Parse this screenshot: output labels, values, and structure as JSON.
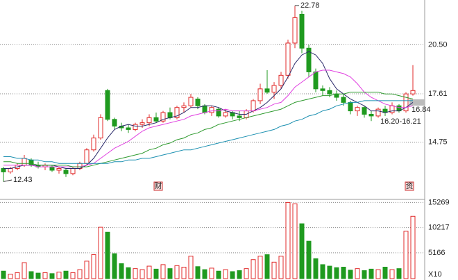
{
  "chart_data": {
    "type": "candlestick",
    "open": [
      13.2,
      13.0,
      13.2,
      13.4,
      13.7,
      13.4,
      13.3,
      13.3,
      13.1,
      13.1,
      12.9,
      13.2,
      13.5,
      14.3,
      15.0,
      17.8,
      16.1,
      15.7,
      15.6,
      15.5,
      15.8,
      15.9,
      16.2,
      16.0,
      16.5,
      16.2,
      16.8,
      16.9,
      17.3,
      16.9,
      16.5,
      16.7,
      16.3,
      16.5,
      16.3,
      16.2,
      16.6,
      17.2,
      17.9,
      17.7,
      18.1,
      18.7,
      20.6,
      22.3,
      20.3,
      18.9,
      17.9,
      17.8,
      17.6,
      17.4,
      17.1,
      16.6,
      16.8,
      16.4,
      16.3,
      16.7,
      16.5,
      16.9,
      16.6,
      17.6
    ],
    "high": [
      13.3,
      13.3,
      13.5,
      14.0,
      13.8,
      13.6,
      13.5,
      13.4,
      13.3,
      13.2,
      13.3,
      13.6,
      14.4,
      15.2,
      16.4,
      17.9,
      16.2,
      15.9,
      15.8,
      15.9,
      16.1,
      16.4,
      16.5,
      16.6,
      16.8,
      16.9,
      17.1,
      17.6,
      17.4,
      17.0,
      16.9,
      16.8,
      16.7,
      16.6,
      16.6,
      16.7,
      17.3,
      18.2,
      19.0,
      18.3,
      18.9,
      20.8,
      22.78,
      22.5,
      20.5,
      19.1,
      18.1,
      18.0,
      17.8,
      17.6,
      17.2,
      16.9,
      16.9,
      16.6,
      16.8,
      16.9,
      17.1,
      17.0,
      17.7,
      19.3
    ],
    "low": [
      12.43,
      12.9,
      13.1,
      13.3,
      13.3,
      13.2,
      13.1,
      13.0,
      12.9,
      12.7,
      12.8,
      13.1,
      13.4,
      14.2,
      14.9,
      16.0,
      15.5,
      15.4,
      15.3,
      15.4,
      15.6,
      15.7,
      15.9,
      15.9,
      16.1,
      16.1,
      16.5,
      16.8,
      16.7,
      16.4,
      16.3,
      16.2,
      16.2,
      16.1,
      16.0,
      16.1,
      16.5,
      17.0,
      17.6,
      17.3,
      17.9,
      18.5,
      20.3,
      20.0,
      18.6,
      17.7,
      17.5,
      17.4,
      17.2,
      16.9,
      16.4,
      16.3,
      16.2,
      16.0,
      16.2,
      16.3,
      16.4,
      16.5,
      16.5,
      17.5
    ],
    "close": [
      13.0,
      13.2,
      13.4,
      13.8,
      13.4,
      13.3,
      13.4,
      13.1,
      13.2,
      12.9,
      13.2,
      13.5,
      14.3,
      15.0,
      16.2,
      16.1,
      15.7,
      15.6,
      15.5,
      15.8,
      15.9,
      16.2,
      16.0,
      16.5,
      16.2,
      16.8,
      16.9,
      17.4,
      16.9,
      16.5,
      16.8,
      16.3,
      16.5,
      16.3,
      16.2,
      16.6,
      17.2,
      17.9,
      17.7,
      18.1,
      18.7,
      20.6,
      22.1,
      20.3,
      18.9,
      17.9,
      17.8,
      17.6,
      17.4,
      17.1,
      16.6,
      16.8,
      16.4,
      16.3,
      16.7,
      16.5,
      16.9,
      16.6,
      17.6,
      17.8
    ],
    "volume": [
      1500,
      900,
      1200,
      3200,
      1400,
      1100,
      1200,
      1000,
      1300,
      1500,
      1200,
      1800,
      3500,
      4800,
      10300,
      9300,
      5000,
      3000,
      2200,
      2000,
      1800,
      2500,
      1900,
      2800,
      2000,
      2600,
      2300,
      4500,
      2400,
      1800,
      2100,
      1500,
      1800,
      1400,
      1600,
      2000,
      3800,
      4500,
      4800,
      3300,
      4500,
      15269,
      15000,
      11000,
      7500,
      4000,
      2800,
      2500,
      2200,
      2300,
      1700,
      2000,
      1600,
      1900,
      1800,
      2300,
      1800,
      2000,
      9500,
      12500
    ],
    "ma": [
      {
        "color": "#2a2a6a",
        "values": [
          13.2,
          13.2,
          13.3,
          13.4,
          13.4,
          13.4,
          13.4,
          13.4,
          13.3,
          13.2,
          13.2,
          13.2,
          13.4,
          13.8,
          14.4,
          15.0,
          15.5,
          15.7,
          15.8,
          15.7,
          15.7,
          15.8,
          15.9,
          16.1,
          16.2,
          16.3,
          16.5,
          16.8,
          16.8,
          16.9,
          16.9,
          16.8,
          16.6,
          16.5,
          16.4,
          16.4,
          16.6,
          16.8,
          17.1,
          17.5,
          17.9,
          18.6,
          19.4,
          19.9,
          20.1,
          19.9,
          19.4,
          18.5,
          17.9,
          17.6,
          17.3,
          17.1,
          16.9,
          16.6,
          16.6,
          16.5,
          16.6,
          16.6,
          16.8,
          17.1
        ]
      },
      {
        "color": "#e040e0",
        "values": [
          13.4,
          13.4,
          13.4,
          13.4,
          13.4,
          13.3,
          13.3,
          13.3,
          13.3,
          13.3,
          13.3,
          13.3,
          13.4,
          13.5,
          13.8,
          14.1,
          14.4,
          14.6,
          14.8,
          15.1,
          15.4,
          15.6,
          15.7,
          15.8,
          15.9,
          16.0,
          16.1,
          16.3,
          16.4,
          16.5,
          16.6,
          16.6,
          16.7,
          16.6,
          16.6,
          16.6,
          16.6,
          16.7,
          16.8,
          17.0,
          17.1,
          17.5,
          18.0,
          18.3,
          18.6,
          18.9,
          19.0,
          19.0,
          18.9,
          18.8,
          18.6,
          18.2,
          17.7,
          17.4,
          17.2,
          17.0,
          16.9,
          16.8,
          16.8,
          16.9
        ]
      },
      {
        "color": "#2e9a2e",
        "values": [
          13.6,
          13.6,
          13.5,
          13.5,
          13.5,
          13.4,
          13.4,
          13.4,
          13.4,
          13.4,
          13.3,
          13.3,
          13.3,
          13.4,
          13.5,
          13.6,
          13.7,
          13.8,
          13.9,
          14.0,
          14.1,
          14.3,
          14.4,
          14.6,
          14.7,
          14.9,
          15.0,
          15.2,
          15.3,
          15.5,
          15.6,
          15.8,
          15.9,
          16.0,
          16.1,
          16.2,
          16.3,
          16.4,
          16.5,
          16.6,
          16.7,
          16.9,
          17.1,
          17.2,
          17.3,
          17.4,
          17.5,
          17.5,
          17.6,
          17.6,
          17.7,
          17.7,
          17.7,
          17.7,
          17.7,
          17.6,
          17.6,
          17.5,
          17.4,
          17.3
        ]
      },
      {
        "color": "#1a8fb0",
        "values": [
          13.9,
          13.9,
          13.8,
          13.8,
          13.7,
          13.7,
          13.6,
          13.6,
          13.5,
          13.5,
          13.5,
          13.5,
          13.5,
          13.5,
          13.5,
          13.5,
          13.6,
          13.6,
          13.7,
          13.7,
          13.8,
          13.8,
          13.9,
          14.0,
          14.1,
          14.2,
          14.3,
          14.3,
          14.4,
          14.5,
          14.6,
          14.7,
          14.8,
          14.9,
          15.0,
          15.1,
          15.2,
          15.3,
          15.4,
          15.5,
          15.7,
          15.8,
          16.0,
          16.1,
          16.3,
          16.4,
          16.6,
          16.7,
          16.9,
          17.0,
          17.1,
          17.1,
          17.2,
          17.2,
          17.2,
          17.2,
          17.2,
          17.2,
          17.2,
          17.2
        ]
      }
    ],
    "up_color": "#e02828",
    "down_color": "#1f9a1f",
    "ylim": [
      11.87,
      23.14
    ],
    "yticks": [
      14.75,
      17.61,
      {
        "value": 20.5,
        "label": "20.50"
      }
    ],
    "volume_ylim": [
      0,
      15745
    ],
    "volume_yticks": [
      5166,
      10217,
      15269
    ],
    "volume_unit": "X10",
    "grid": true,
    "annotations": [
      "22.78",
      "12.43",
      "16.20-16.21",
      "16.84"
    ],
    "markers": [
      "财",
      "资"
    ]
  }
}
